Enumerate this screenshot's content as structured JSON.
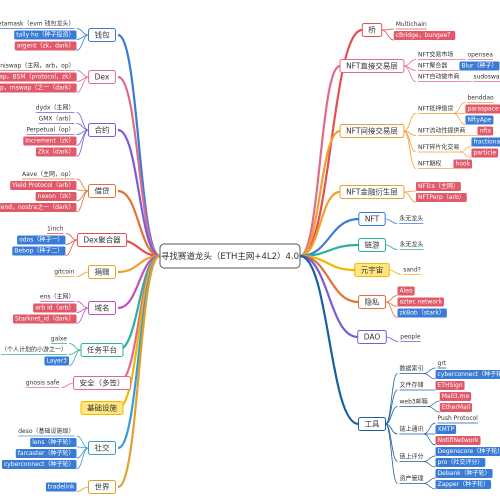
{
  "center": "寻找赛道龙头（ETH主网+4L2）4.0",
  "left": [
    {
      "label": "钱包",
      "color": "#3a7bd5",
      "children": [
        {
          "text": "metamask（evm 钱包龙头）"
        },
        {
          "text": "tally ho（种子投资）",
          "box": "#3a7bd5"
        },
        {
          "text": "argent（zk，dark）",
          "box": "#e05a6a"
        }
      ]
    },
    {
      "label": "Dex",
      "color": "#e06c8c",
      "children": [
        {
          "text": "uniswap（主网，arb，op）"
        },
        {
          "text": "swap，BSM（protocol，zk）",
          "box": "#e05a6a"
        },
        {
          "text": "swap，mswap（之一（dark）",
          "box": "#e05a6a"
        }
      ]
    },
    {
      "label": "合约",
      "color": "#7b5cd6",
      "children": [
        {
          "text": "dydx（主网）"
        },
        {
          "text": "GMX（arb）"
        },
        {
          "text": "Perpetual（op）"
        },
        {
          "text": "Increment（zk）",
          "box": "#e05a6a"
        },
        {
          "text": "Zkx（dark）",
          "box": "#e05a6a"
        }
      ]
    },
    {
      "label": "借贷",
      "color": "#e0733a",
      "children": [
        {
          "text": "Aave（主网，op）"
        },
        {
          "text": "Yield Protocol（arb）",
          "box": "#e05a6a"
        },
        {
          "text": "nexon（zk）",
          "box": "#e05a6a"
        },
        {
          "text": "zklend，nostra之一（dark）",
          "box": "#e05a6a"
        }
      ]
    },
    {
      "label": "Dex聚合器",
      "color": "#e05050",
      "children": [
        {
          "text": "1inch"
        },
        {
          "text": "odos（种子一）",
          "box": "#3a7bd5"
        },
        {
          "text": "Bebop（种子二）",
          "box": "#3a7bd5"
        }
      ]
    },
    {
      "label": "捐赠",
      "color": "#f0a030",
      "children": [
        {
          "text": "gitcoin"
        }
      ]
    },
    {
      "label": "域名",
      "color": "#c050c0",
      "children": [
        {
          "text": "ens（主网）"
        },
        {
          "text": "arb id（arb）",
          "box": "#e05a6a"
        },
        {
          "text": "Starknet_id（dark）",
          "box": "#e05a6a"
        }
      ]
    },
    {
      "label": "任务平台",
      "color": "#2bb0a0",
      "children": [
        {
          "text": "galxe"
        },
        {
          "text": "（个人计划的小游之一）"
        },
        {
          "text": "Layer3",
          "box": "#3a7bd5"
        }
      ]
    },
    {
      "label": "安全（多签）",
      "color": "#e06c8c",
      "children": [
        {
          "text": "gnosis safe"
        }
      ]
    },
    {
      "label": "基础设施",
      "color": "#f0b800",
      "fill": "#ffe680",
      "children": []
    },
    {
      "label": "社交",
      "color": "#3a9ad5",
      "children": [
        {
          "text": "deso（基础设施级）"
        },
        {
          "text": "lens（种子轮）",
          "box": "#3a7bd5"
        },
        {
          "text": "farcaster（种子轮）",
          "box": "#3a7bd5"
        },
        {
          "text": "cyberconnect（种子轮）",
          "box": "#3a7bd5"
        }
      ]
    },
    {
      "label": "世界",
      "color": "#e0a030",
      "children": [
        {
          "text": "tradelink",
          "box": "#3a7bd5"
        }
      ]
    }
  ],
  "right": [
    {
      "label": "桥",
      "color": "#e05050",
      "children": [
        {
          "text": "Multichain"
        },
        {
          "text": "cBridge，bungee？",
          "box": "#e05a6a"
        }
      ]
    },
    {
      "label": "NFT直接交易层",
      "color": "#e06c8c",
      "children": [
        {
          "text": "NFT交易市场",
          "children": [
            {
              "text": "opensea"
            }
          ]
        },
        {
          "text": "NFT聚合器",
          "children": [
            {
              "text": "Blur（种子）",
              "box": "#3a7bd5"
            }
          ]
        },
        {
          "text": "NFT自动做市商",
          "children": [
            {
              "text": "sudoswap"
            }
          ]
        }
      ]
    },
    {
      "label": "NFT间接交易层",
      "color": "#f0a030",
      "children": [
        {
          "text": "NFT抵押借贷",
          "children": [
            {
              "text": "benddao"
            },
            {
              "text": "paraspace",
              "box": "#e05a6a"
            },
            {
              "text": "NftyApe",
              "box": "#3a7bd5"
            }
          ]
        },
        {
          "text": "NFT流动性提供商",
          "children": [
            {
              "text": "nftx",
              "box": "#e05a6a"
            }
          ]
        },
        {
          "text": "NFT碎片化交易",
          "children": [
            {
              "text": "fractional",
              "box": "#3a7bd5"
            },
            {
              "text": "particle",
              "box": "#e05a6a"
            }
          ]
        },
        {
          "text": "NFT期权",
          "children": [
            {
              "text": "hook",
              "box": "#e05a6a"
            }
          ]
        }
      ]
    },
    {
      "label": "NFT金融衍生层",
      "color": "#f0a030",
      "children": [
        {
          "text": "NFTcs（主网）",
          "box": "#e05a6a"
        },
        {
          "text": "NFTPerp（arb）",
          "box": "#e05a6a"
        }
      ]
    },
    {
      "label": "NFT",
      "color": "#3a7bd5",
      "children": [
        {
          "text": "永无龙头"
        }
      ]
    },
    {
      "label": "链游",
      "color": "#2bb0a0",
      "children": [
        {
          "text": "永无龙头"
        }
      ]
    },
    {
      "label": "元宇宙",
      "color": "#f0b800",
      "fill": "#ffe680",
      "children": [
        {
          "text": "sand?"
        }
      ]
    },
    {
      "label": "隐私",
      "color": "#e0733a",
      "children": [
        {
          "text": "Aleo",
          "box": "#e05a6a"
        },
        {
          "text": "aztec network",
          "box": "#e05a6a"
        },
        {
          "text": "zkBob（stark）",
          "box": "#3a7bd5"
        }
      ]
    },
    {
      "label": "DAO",
      "color": "#7b5cd6",
      "children": [
        {
          "text": "people"
        }
      ]
    },
    {
      "label": "工具",
      "color": "#1a5fa0",
      "children": [
        {
          "text": "数据索引",
          "children": [
            {
              "text": "grt"
            },
            {
              "text": "cyberconnect（种子轮）",
              "box": "#3a7bd5"
            }
          ]
        },
        {
          "text": "文件存储",
          "children": [
            {
              "text": "ETHSign",
              "box": "#e05a6a"
            }
          ]
        },
        {
          "text": "web3邮箱",
          "children": [
            {
              "text": "Mail3.me",
              "box": "#e05a6a"
            },
            {
              "text": "EtherMail",
              "box": "#e05a6a"
            }
          ]
        },
        {
          "text": "链上通讯",
          "children": [
            {
              "text": "Push Protocol"
            },
            {
              "text": "XMTP",
              "box": "#3a7bd5"
            },
            {
              "text": "NotifiNetwork",
              "box": "#e05a6a"
            }
          ]
        },
        {
          "text": "链上评分",
          "children": [
            {
              "text": "Degenscore（种子轮）",
              "box": "#3a7bd5"
            },
            {
              "text": "pro（社交评分）",
              "box": "#3a7bd5"
            }
          ]
        },
        {
          "text": "资产管理",
          "children": [
            {
              "text": "Debank（种子轮）",
              "box": "#3a7bd5"
            },
            {
              "text": "Zapper（种子轮）",
              "box": "#3a7bd5"
            }
          ]
        }
      ]
    }
  ]
}
